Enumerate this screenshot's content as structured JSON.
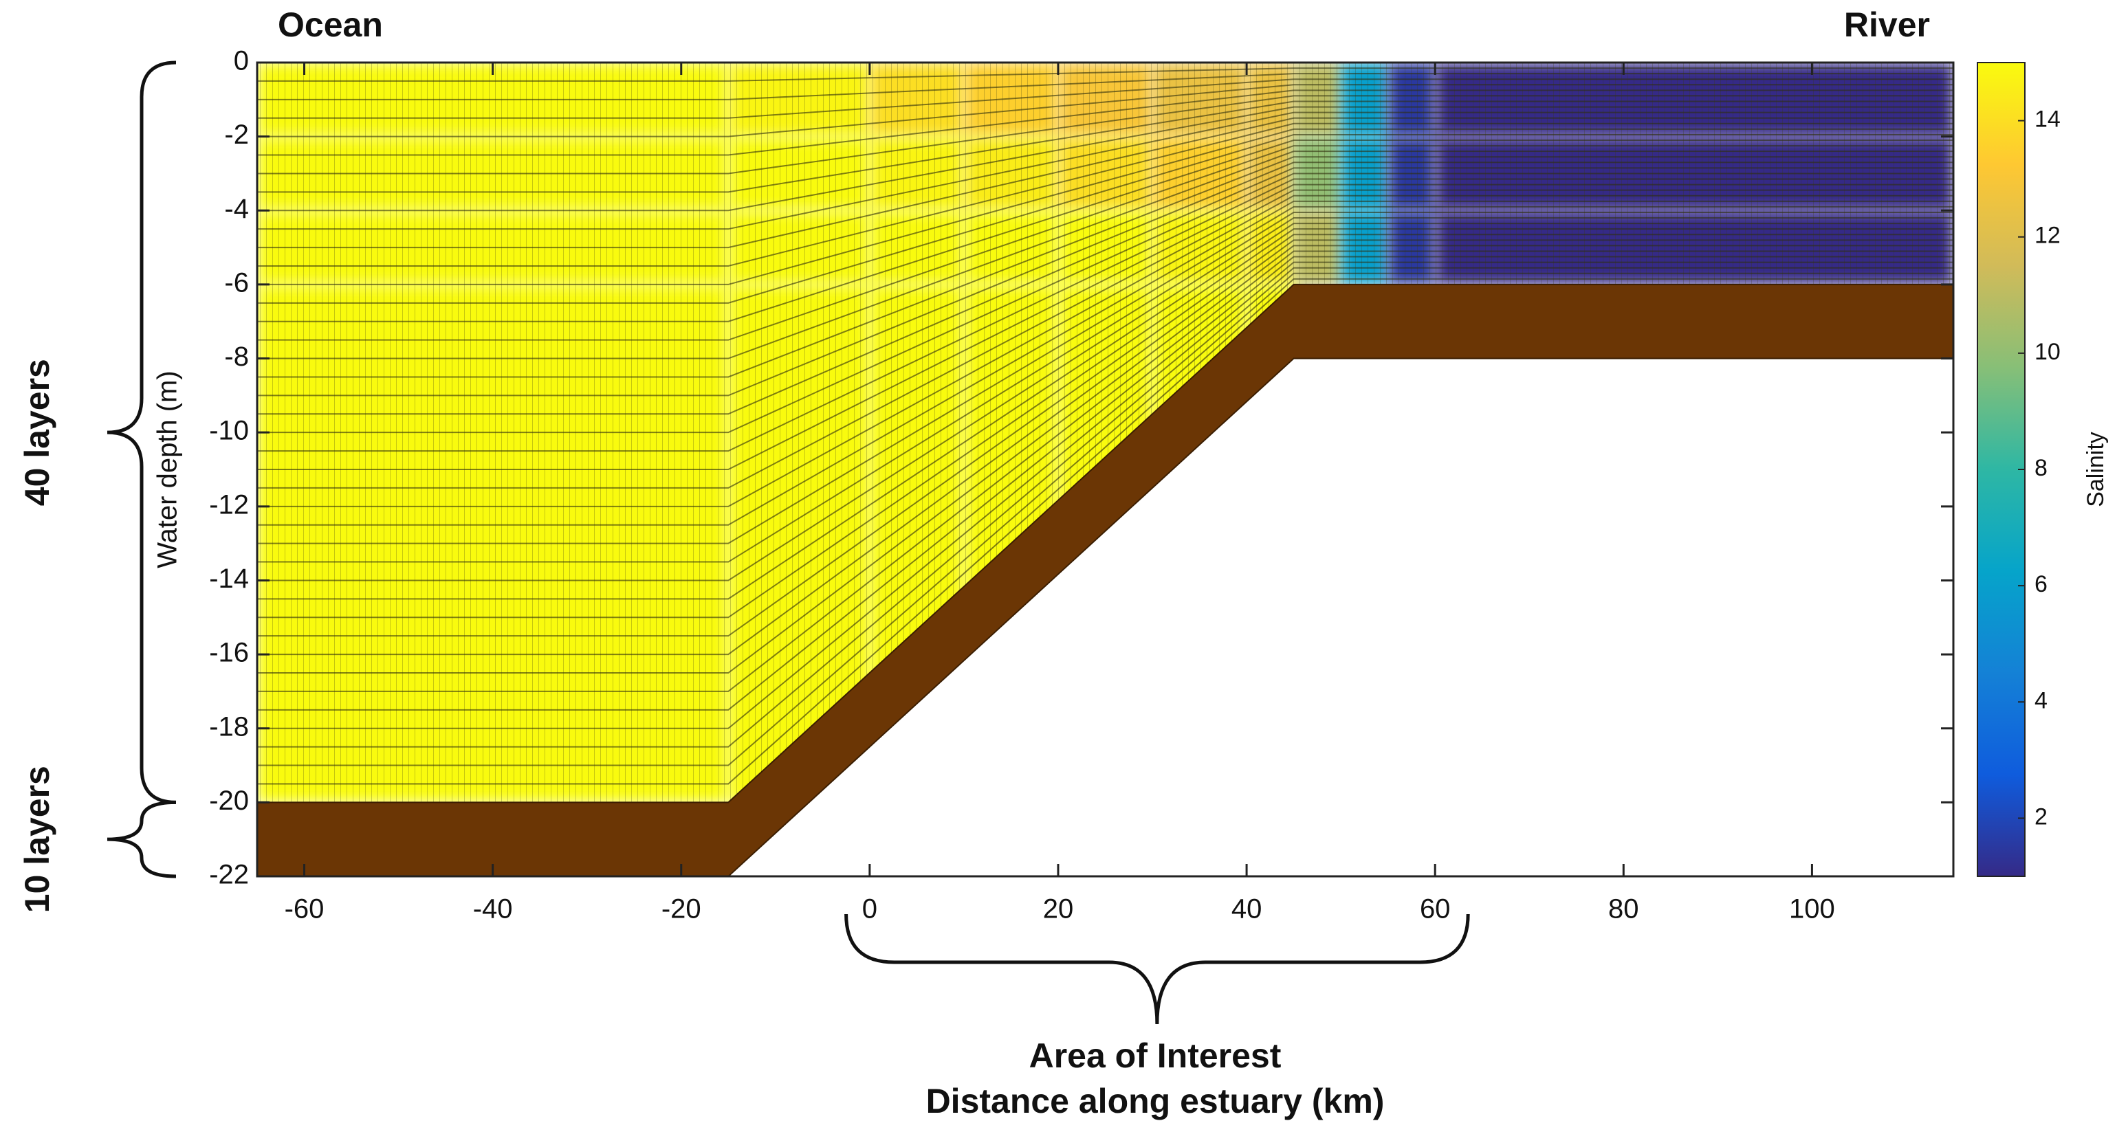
{
  "chart_data": {
    "type": "heatmap",
    "xlabel": "Distance along estuary (km)",
    "ylabel": "Water depth (m)",
    "xlim": [
      -65,
      115
    ],
    "xticks": [
      -60,
      -40,
      -20,
      0,
      20,
      40,
      60,
      80,
      100
    ],
    "ylim": [
      -22,
      0
    ],
    "yticks": [
      0,
      -2,
      -4,
      -6,
      -8,
      -10,
      -12,
      -14,
      -16,
      -18,
      -20,
      -22
    ],
    "colorbar": {
      "label": "Salinity",
      "lim": [
        1,
        15
      ],
      "ticks": [
        2,
        4,
        6,
        8,
        10,
        12,
        14
      ],
      "colormap": [
        "#352a87",
        "#0f5cdd",
        "#1481d6",
        "#06a4ca",
        "#2eb7a4",
        "#87bf77",
        "#d1bb59",
        "#fec832",
        "#f9fb0e"
      ]
    },
    "salinity": {
      "x_edges": [
        -65,
        -15,
        0,
        10,
        20,
        30,
        40,
        45,
        50,
        55,
        60,
        115
      ],
      "depth_edges": [
        0,
        -2,
        -4,
        -6,
        -20
      ],
      "values": [
        [
          15,
          14.8,
          14,
          13.5,
          13,
          12.5,
          12.5,
          11,
          6,
          1.5,
          1
        ],
        [
          15,
          15,
          14.8,
          14.5,
          14,
          13.5,
          12.5,
          10,
          6,
          1.5,
          1
        ],
        [
          15,
          15,
          15,
          15,
          15,
          14.8,
          14.5,
          11,
          6,
          1.5,
          1
        ],
        [
          15,
          15,
          15,
          15,
          15,
          15,
          15,
          null,
          null,
          null,
          null
        ]
      ]
    },
    "bed": {
      "x": [
        -65,
        -15,
        45,
        115
      ],
      "y": [
        -20,
        -20,
        -6,
        -6
      ],
      "color": "#6b3605"
    },
    "sediment_bottom": {
      "x": [
        -65,
        -15,
        45,
        115
      ],
      "y": [
        -22,
        -22,
        -8,
        -8
      ]
    },
    "annotations": {
      "ocean": "Ocean",
      "river": "River"
    },
    "layers": [
      {
        "label": "40 layers",
        "value": 40,
        "range": [
          0,
          -20
        ]
      },
      {
        "label": "10 layers",
        "value": 10,
        "range": [
          -20,
          -22
        ]
      }
    ],
    "area_of_interest": {
      "label": "Area of Interest",
      "range": [
        -2.5,
        63.5
      ]
    }
  }
}
